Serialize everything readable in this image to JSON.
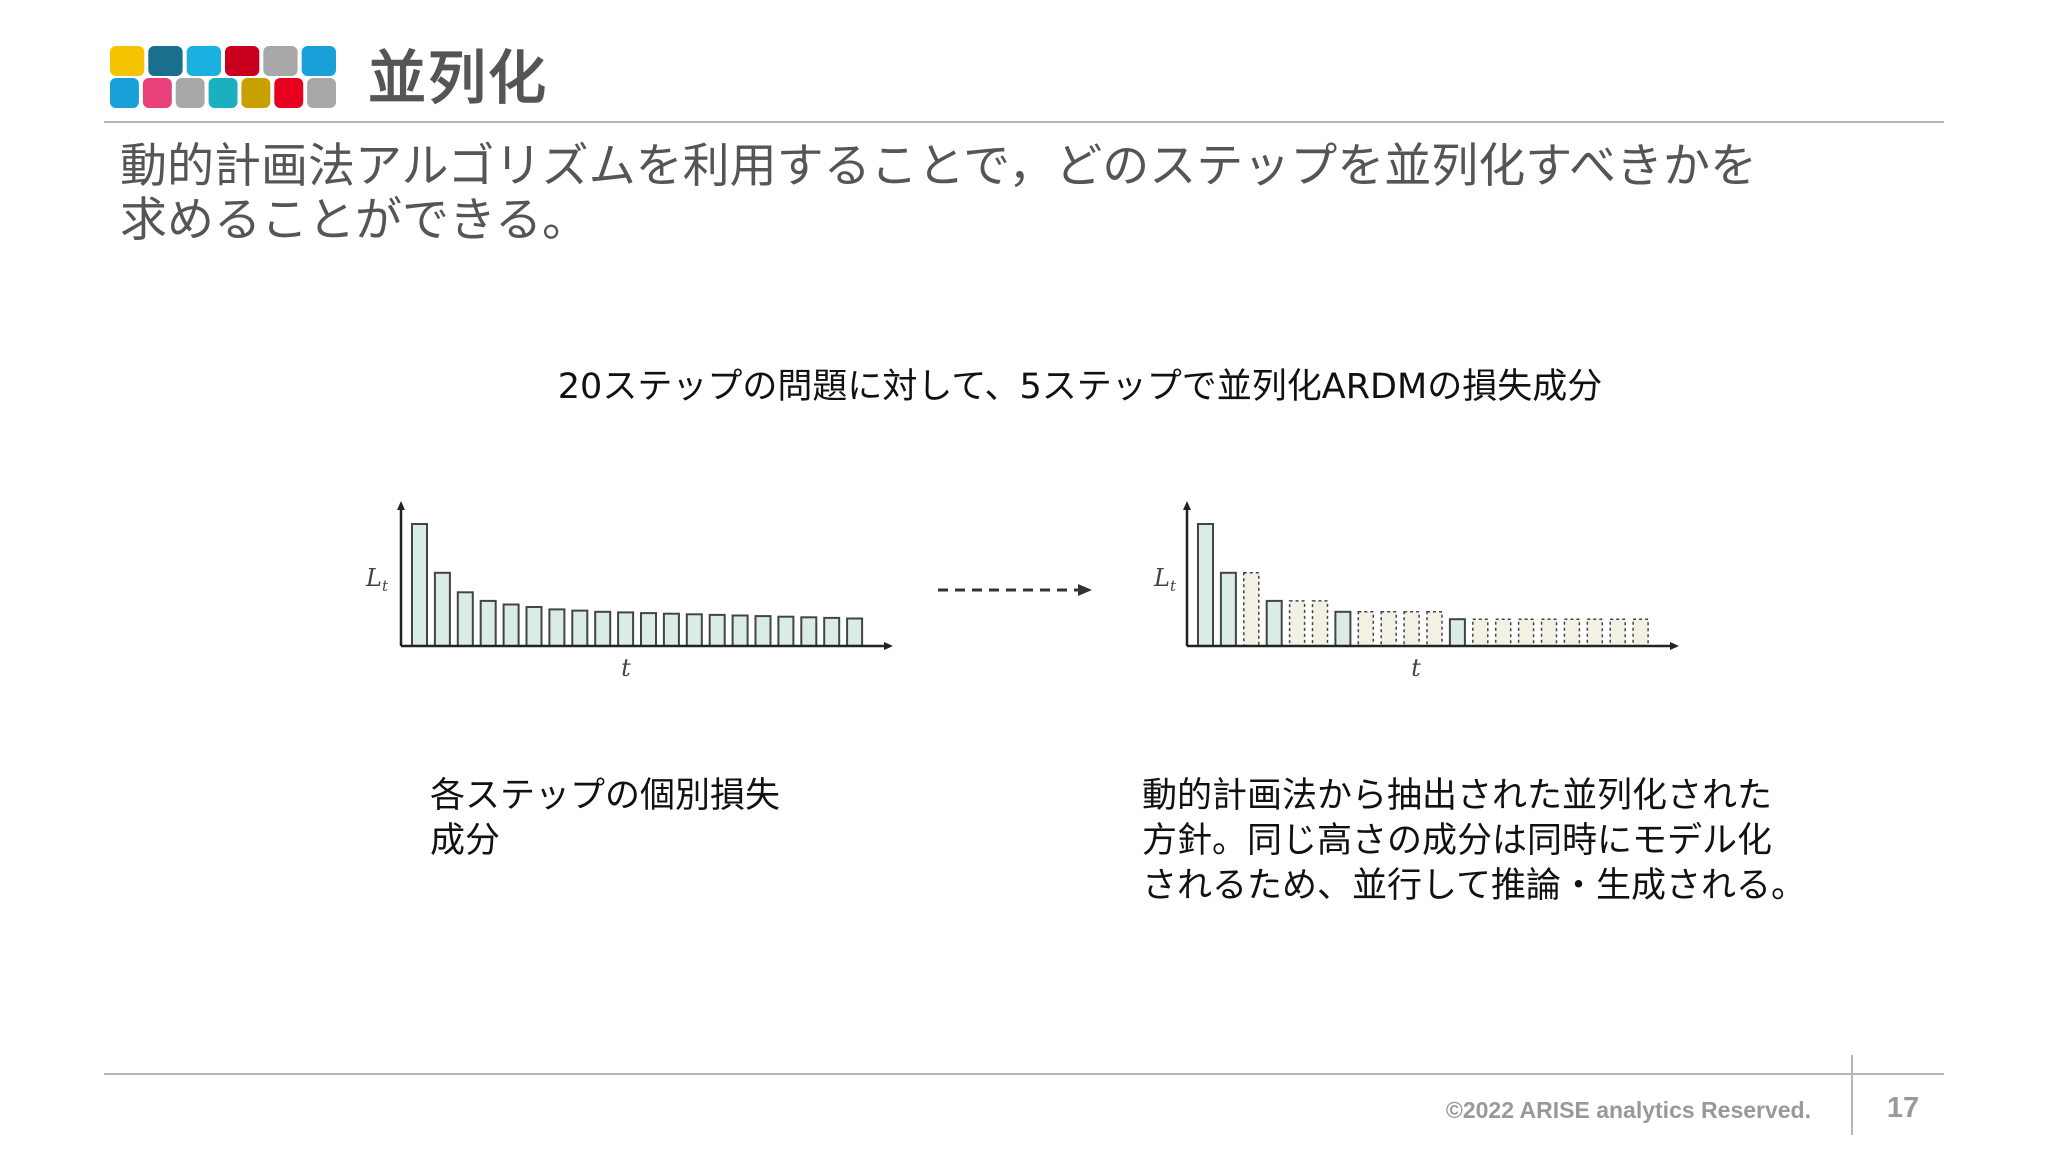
{
  "header": {
    "title": "並列化",
    "logo_colors": {
      "top": [
        "#f5c400",
        "#1a6e8e",
        "#1cb0e0",
        "#c8001e",
        "#a8a8a8",
        "#1aa0d8"
      ],
      "bottom": [
        "#18a0d8",
        "#e8407a",
        "#a8a8a8",
        "#1ab0c0",
        "#c8a000",
        "#e8001e",
        "#a8a8a8"
      ]
    }
  },
  "lead": {
    "line1": "動的計画法アルゴリズムを利用することで，どのステップを並列化すべきかを",
    "line2": "求めることができる。"
  },
  "figure": {
    "caption": "20ステップの問題に対して、5ステップで並列化ARDMの損失成分",
    "colors": {
      "bar_fill": "#d9ece6",
      "bar_stroke": "#444444",
      "dashed_fill": "#f2f1e3"
    },
    "left_chart": {
      "ylabel": "L",
      "ylabel_sub": "t",
      "xlabel": "t",
      "values": [
        100,
        60,
        44,
        37,
        34,
        32,
        30,
        29,
        28,
        27.5,
        27,
        26.5,
        26,
        25.5,
        25,
        24.5,
        24,
        23.5,
        23,
        22.5
      ]
    },
    "right_chart": {
      "ylabel": "L",
      "ylabel_sub": "t",
      "xlabel": "t",
      "values": [
        100,
        60,
        60,
        37,
        37,
        37,
        28,
        28,
        28,
        28,
        28,
        22,
        22,
        22,
        22,
        22,
        22,
        22,
        22,
        22
      ],
      "dashed": [
        false,
        false,
        true,
        false,
        true,
        true,
        false,
        true,
        true,
        true,
        true,
        false,
        true,
        true,
        true,
        true,
        true,
        true,
        true,
        true
      ]
    }
  },
  "desc_left": {
    "line1": "各ステップの個別損失",
    "line2": "成分"
  },
  "desc_right": {
    "line1": "動的計画法から抽出された並列化された",
    "line2": "方針。同じ高さの成分は同時にモデル化",
    "line3": "されるため、並行して推論・生成される。"
  },
  "footer": {
    "copyright": "©2022 ARISE analytics Reserved.",
    "page_number": "17"
  }
}
